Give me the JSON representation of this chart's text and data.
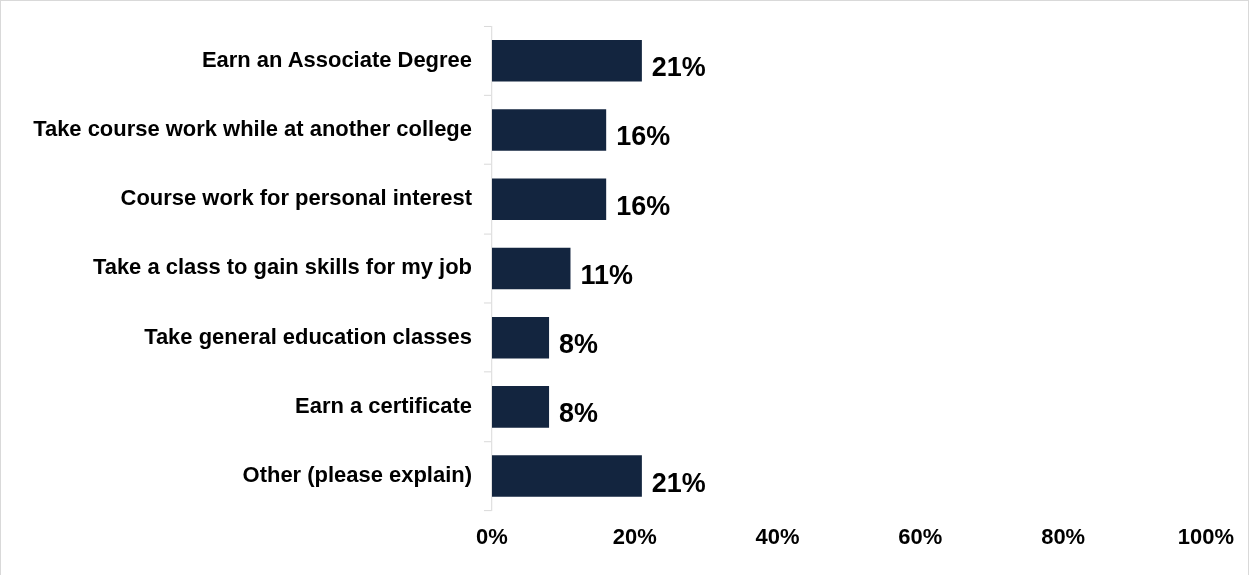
{
  "chart_data": {
    "type": "bar",
    "orientation": "horizontal",
    "categories": [
      "Earn an Associate Degree",
      "Take course work while at another college",
      "Course work for personal interest",
      "Take a class to gain skills for my job",
      "Take general education classes",
      "Earn a certificate",
      "Other (please explain)"
    ],
    "values": [
      21,
      16,
      16,
      11,
      8,
      8,
      21
    ],
    "color": "#13253f",
    "data_labels": true,
    "value_labels": [
      "21%",
      "16%",
      "16%",
      "11%",
      "8%",
      "8%",
      "21%"
    ],
    "xlim": [
      0,
      100
    ],
    "xticks": [
      {
        "value": 0,
        "label": "0%"
      },
      {
        "value": 20,
        "label": "20%"
      },
      {
        "value": 40,
        "label": "40%"
      },
      {
        "value": 60,
        "label": "60%"
      },
      {
        "value": 80,
        "label": "80%"
      },
      {
        "value": 100,
        "label": "100%"
      }
    ],
    "legend": false
  }
}
